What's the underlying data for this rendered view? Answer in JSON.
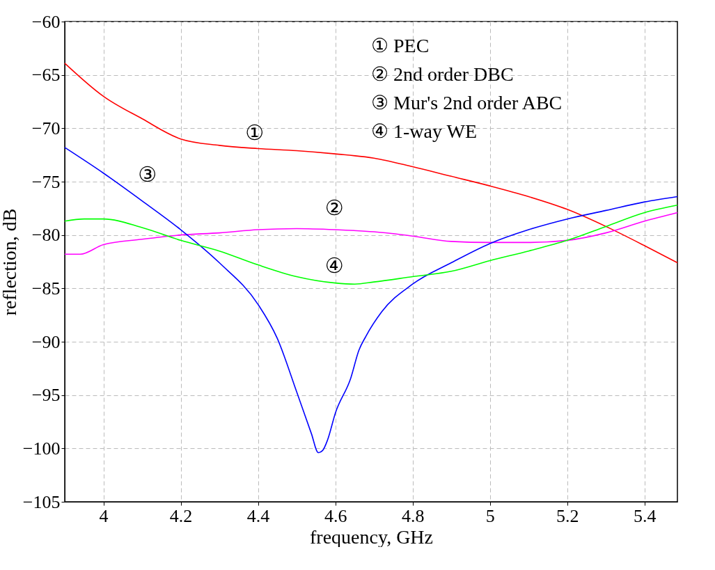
{
  "chart_data": {
    "type": "line",
    "xlabel": "frequency, GHz",
    "ylabel": "reflection, dB",
    "xlim": [
      3.9,
      5.485
    ],
    "ylim": [
      -105,
      -60
    ],
    "xticks": [
      4,
      4.2,
      4.4,
      4.6,
      4.8,
      5,
      5.2,
      5.4
    ],
    "yticks": [
      -105,
      -100,
      -95,
      -90,
      -85,
      -80,
      -75,
      -70,
      -65,
      -60
    ],
    "grid": true,
    "line_style": "solid",
    "series": [
      {
        "color": "#ff0000",
        "x": [
          3.9,
          4.0,
          4.1,
          4.2,
          4.3,
          4.4,
          4.5,
          4.6,
          4.7,
          4.8,
          4.9,
          5.0,
          5.1,
          5.2,
          5.3,
          5.4,
          5.485
        ],
        "values": [
          -63.9,
          -67.0,
          -69.1,
          -71.0,
          -71.6,
          -71.9,
          -72.1,
          -72.4,
          -72.8,
          -73.6,
          -74.5,
          -75.4,
          -76.4,
          -77.6,
          -79.2,
          -81.0,
          -82.6
        ]
      },
      {
        "color": "#ff00ff",
        "x": [
          3.9,
          3.94,
          4.0,
          4.1,
          4.2,
          4.3,
          4.4,
          4.5,
          4.6,
          4.7,
          4.8,
          4.9,
          5.0,
          5.1,
          5.2,
          5.3,
          5.4,
          5.485
        ],
        "values": [
          -81.8,
          -81.8,
          -80.9,
          -80.4,
          -80.0,
          -79.8,
          -79.5,
          -79.4,
          -79.5,
          -79.7,
          -80.1,
          -80.6,
          -80.7,
          -80.7,
          -80.5,
          -79.8,
          -78.7,
          -77.9
        ]
      },
      {
        "color": "#0000ff",
        "x": [
          3.9,
          4.0,
          4.1,
          4.2,
          4.3,
          4.4,
          4.45,
          4.5,
          4.538,
          4.556,
          4.567,
          4.58,
          4.6,
          4.64,
          4.661,
          4.679,
          4.72,
          4.8,
          4.9,
          5.0,
          5.1,
          5.2,
          5.3,
          5.4,
          5.485
        ],
        "values": [
          -71.8,
          -74.2,
          -76.8,
          -79.5,
          -82.6,
          -86.5,
          -89.7,
          -94.7,
          -98.6,
          -100.4,
          -100.2,
          -99.2,
          -96.7,
          -93.4,
          -90.8,
          -89.5,
          -87.2,
          -84.6,
          -82.6,
          -80.8,
          -79.5,
          -78.5,
          -77.7,
          -76.9,
          -76.4
        ]
      },
      {
        "color": "#00ff00",
        "x": [
          3.9,
          3.95,
          4.0,
          4.1,
          4.2,
          4.3,
          4.4,
          4.5,
          4.6,
          4.65,
          4.7,
          4.8,
          4.9,
          5.0,
          5.1,
          5.2,
          5.3,
          5.4,
          5.485
        ],
        "values": [
          -78.7,
          -78.5,
          -78.5,
          -79.3,
          -80.5,
          -81.5,
          -82.8,
          -83.9,
          -84.5,
          -84.6,
          -84.4,
          -83.9,
          -83.4,
          -82.4,
          -81.5,
          -80.5,
          -79.2,
          -77.9,
          -77.2
        ]
      }
    ],
    "annotations": [
      "①",
      "②",
      "③",
      "④",
      "① PEC",
      "② 2nd order DBC",
      "③ Mur's 2nd order ABC",
      "④ 1-way WE"
    ]
  }
}
